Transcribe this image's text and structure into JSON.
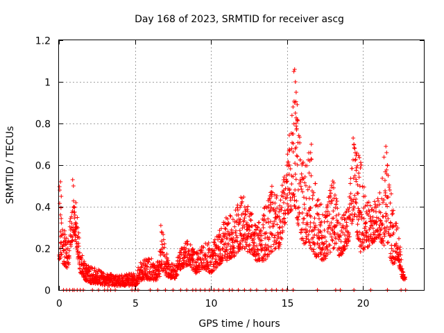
{
  "chart_data": {
    "type": "scatter",
    "title": "Day 168 of 2023, SRMTID for receiver ascg",
    "xlabel": "GPS time / hours",
    "ylabel": "SRMTID / TECUs",
    "xlim": [
      0,
      24
    ],
    "ylim": [
      0,
      1.2
    ],
    "grid": true,
    "marker": "+",
    "marker_color": "#ff0000",
    "xticks": [
      {
        "value": 0,
        "label": "0"
      },
      {
        "value": 5,
        "label": "5"
      },
      {
        "value": 10,
        "label": "10"
      },
      {
        "value": 15,
        "label": "15"
      },
      {
        "value": 20,
        "label": "20"
      }
    ],
    "yticks": [
      {
        "value": 0,
        "label": "0"
      },
      {
        "value": 0.2,
        "label": "0.2"
      },
      {
        "value": 0.4,
        "label": "0.4"
      },
      {
        "value": 0.6,
        "label": "0.6"
      },
      {
        "value": 0.8,
        "label": "0.8"
      },
      {
        "value": 1.0,
        "label": "1"
      },
      {
        "value": 1.2,
        "label": "1.2"
      }
    ],
    "envelope": [
      [
        0.0,
        0.15,
        0.52
      ],
      [
        0.3,
        0.12,
        0.3
      ],
      [
        0.6,
        0.1,
        0.25
      ],
      [
        1.0,
        0.28,
        0.52
      ],
      [
        1.4,
        0.08,
        0.2
      ],
      [
        1.8,
        0.04,
        0.12
      ],
      [
        2.2,
        0.03,
        0.11
      ],
      [
        2.6,
        0.03,
        0.1
      ],
      [
        3.0,
        0.02,
        0.08
      ],
      [
        3.5,
        0.02,
        0.08
      ],
      [
        4.0,
        0.02,
        0.07
      ],
      [
        4.5,
        0.02,
        0.08
      ],
      [
        5.0,
        0.02,
        0.08
      ],
      [
        5.5,
        0.05,
        0.15
      ],
      [
        6.0,
        0.05,
        0.16
      ],
      [
        6.4,
        0.04,
        0.12
      ],
      [
        6.8,
        0.08,
        0.3
      ],
      [
        7.2,
        0.06,
        0.14
      ],
      [
        7.6,
        0.05,
        0.12
      ],
      [
        8.0,
        0.1,
        0.2
      ],
      [
        8.5,
        0.12,
        0.24
      ],
      [
        9.0,
        0.08,
        0.18
      ],
      [
        9.5,
        0.1,
        0.25
      ],
      [
        10.0,
        0.08,
        0.22
      ],
      [
        10.5,
        0.12,
        0.28
      ],
      [
        11.0,
        0.14,
        0.35
      ],
      [
        11.5,
        0.16,
        0.38
      ],
      [
        12.0,
        0.2,
        0.48
      ],
      [
        12.5,
        0.18,
        0.4
      ],
      [
        13.0,
        0.14,
        0.32
      ],
      [
        13.5,
        0.14,
        0.4
      ],
      [
        14.0,
        0.18,
        0.5
      ],
      [
        14.5,
        0.2,
        0.44
      ],
      [
        15.0,
        0.36,
        0.64
      ],
      [
        15.5,
        0.4,
        1.05
      ],
      [
        16.0,
        0.22,
        0.6
      ],
      [
        16.5,
        0.2,
        0.7
      ],
      [
        17.0,
        0.15,
        0.45
      ],
      [
        17.5,
        0.14,
        0.38
      ],
      [
        18.0,
        0.2,
        0.55
      ],
      [
        18.5,
        0.16,
        0.35
      ],
      [
        19.0,
        0.22,
        0.4
      ],
      [
        19.4,
        0.35,
        0.72
      ],
      [
        19.8,
        0.18,
        0.66
      ],
      [
        20.2,
        0.2,
        0.45
      ],
      [
        20.6,
        0.22,
        0.42
      ],
      [
        21.0,
        0.25,
        0.45
      ],
      [
        21.5,
        0.2,
        0.7
      ],
      [
        22.0,
        0.12,
        0.38
      ],
      [
        22.3,
        0.14,
        0.3
      ],
      [
        22.6,
        0.05,
        0.1
      ],
      [
        22.8,
        0.05,
        0.08
      ]
    ],
    "zero_points_x": [
      0.3,
      0.5,
      0.7,
      0.9,
      1.0,
      1.2,
      1.4,
      1.6,
      2.2,
      2.6,
      3.0,
      3.2,
      3.4,
      3.7,
      4.8,
      5.0,
      5.2,
      6.0,
      6.5,
      7.0,
      7.5,
      8.0,
      8.4,
      8.8,
      9.0,
      9.3,
      9.6,
      9.9,
      10.2,
      10.5,
      10.8,
      11.2,
      11.4,
      11.8,
      12.2,
      12.6,
      13.0,
      13.6,
      14.0,
      14.3,
      14.7,
      15.0,
      15.4,
      17.0,
      18.2,
      18.5,
      19.4,
      20.5,
      21.6,
      22.5,
      22.8
    ],
    "spike_points": [
      [
        0.1,
        0.52
      ],
      [
        0.05,
        0.48
      ],
      [
        0.15,
        0.45
      ],
      [
        0.1,
        0.28
      ],
      [
        0.08,
        0.2
      ],
      [
        0.9,
        0.53
      ],
      [
        0.95,
        0.5
      ],
      [
        1.0,
        0.4
      ],
      [
        1.05,
        0.36
      ],
      [
        6.7,
        0.31
      ],
      [
        6.75,
        0.28
      ],
      [
        15.45,
        1.05
      ],
      [
        15.5,
        1.06
      ],
      [
        15.55,
        1.0
      ],
      [
        15.6,
        0.95
      ],
      [
        15.5,
        0.9
      ],
      [
        15.55,
        0.85
      ],
      [
        15.6,
        0.8
      ],
      [
        15.4,
        0.75
      ],
      [
        16.6,
        0.7
      ],
      [
        16.55,
        0.66
      ],
      [
        16.5,
        0.62
      ],
      [
        19.35,
        0.73
      ],
      [
        19.4,
        0.7
      ],
      [
        19.45,
        0.68
      ],
      [
        21.5,
        0.69
      ],
      [
        21.55,
        0.66
      ],
      [
        21.6,
        0.6
      ],
      [
        21.65,
        0.55
      ]
    ]
  }
}
